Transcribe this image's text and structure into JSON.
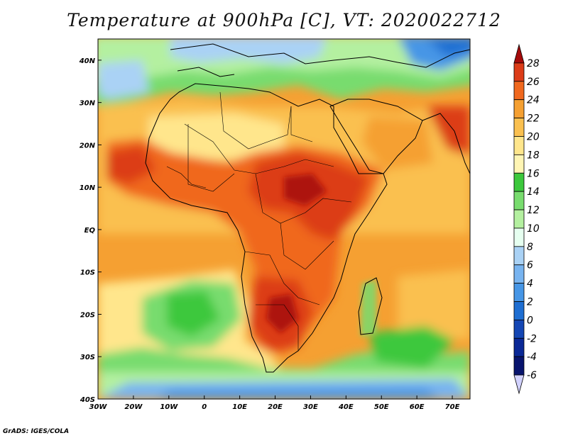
{
  "title": "Temperature at 900hPa [C], VT: 2020022712",
  "credit": "GrADS: IGES/COLA",
  "map": {
    "lon_range": [
      -30,
      75
    ],
    "lat_range": [
      -40,
      45
    ],
    "lon_ticks": [
      {
        "value": -30,
        "label": "30W"
      },
      {
        "value": -20,
        "label": "20W"
      },
      {
        "value": -10,
        "label": "10W"
      },
      {
        "value": 0,
        "label": "0"
      },
      {
        "value": 10,
        "label": "10E"
      },
      {
        "value": 20,
        "label": "20E"
      },
      {
        "value": 30,
        "label": "30E"
      },
      {
        "value": 40,
        "label": "40E"
      },
      {
        "value": 50,
        "label": "50E"
      },
      {
        "value": 60,
        "label": "60E"
      },
      {
        "value": 70,
        "label": "70E"
      }
    ],
    "lat_ticks": [
      {
        "value": 40,
        "label": "40N"
      },
      {
        "value": 30,
        "label": "30N"
      },
      {
        "value": 20,
        "label": "20N"
      },
      {
        "value": 10,
        "label": "10N"
      },
      {
        "value": 0,
        "label": "EQ"
      },
      {
        "value": -10,
        "label": "10S"
      },
      {
        "value": -20,
        "label": "20S"
      },
      {
        "value": -30,
        "label": "30S"
      },
      {
        "value": -40,
        "label": "40S"
      }
    ]
  },
  "colorbar": {
    "levels": [
      28,
      26,
      24,
      22,
      20,
      18,
      16,
      14,
      12,
      10,
      8,
      6,
      4,
      2,
      0,
      -2,
      -4,
      -6
    ],
    "labels": [
      "28",
      "26",
      "24",
      "22",
      "20",
      "18",
      "16",
      "14",
      "12",
      "10",
      "8",
      "6",
      "4",
      "2",
      "0",
      "-2",
      "-4",
      "-6"
    ],
    "colors_top_to_bottom": [
      "#a50a0a",
      "#dc3c18",
      "#f0681e",
      "#f5a032",
      "#fac050",
      "#ffe68c",
      "#fff5b4",
      "#3cc83c",
      "#78dc6e",
      "#b4f0a0",
      "#e6fff0",
      "#aad2f5",
      "#78b4f0",
      "#4696e6",
      "#1e6ed2",
      "#1446b4",
      "#0a2896",
      "#08146e",
      "#d2d2ff"
    ]
  }
}
